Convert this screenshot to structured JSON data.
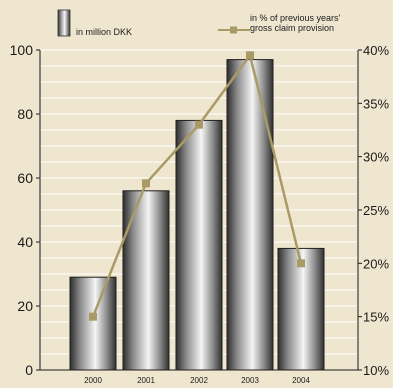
{
  "chart_data": {
    "type": "bar",
    "categories": [
      "2000",
      "2001",
      "2002",
      "2003",
      "2004"
    ],
    "series": [
      {
        "name": "in million DKK",
        "type": "bar",
        "axis": "left",
        "values": [
          29,
          56,
          78,
          97,
          38
        ]
      },
      {
        "name_lines": [
          "in % of previous years'",
          "gross claim provision"
        ],
        "type": "line",
        "axis": "right",
        "values": [
          15,
          27.5,
          33,
          39.5,
          20
        ]
      }
    ],
    "left_axis": {
      "ylim": [
        0,
        100
      ],
      "ticks": [
        "0",
        "20",
        "40",
        "60",
        "80",
        "100"
      ]
    },
    "right_axis": {
      "ylim": [
        10,
        40
      ],
      "ticks": [
        "10%",
        "15%",
        "20%",
        "25%",
        "30%",
        "35%",
        "40%"
      ]
    },
    "grid": true,
    "legend": "top",
    "colors": {
      "background": "#efe6cf",
      "grid": "#ffffff",
      "bar_dark": "#2e2e2e",
      "bar_light": "#f5f5f5",
      "line": "#a99a66",
      "marker": "#a99a66"
    }
  }
}
